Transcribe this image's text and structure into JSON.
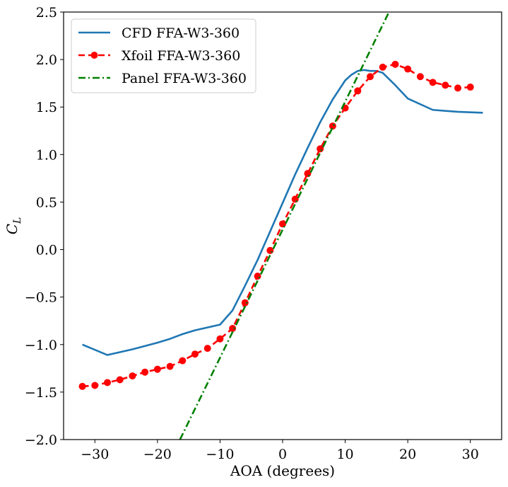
{
  "chart_data": {
    "type": "line",
    "xlabel": "AOA (degrees)",
    "ylabel": "C",
    "ylabel_sub": "L",
    "xlim": [
      -35,
      35
    ],
    "ylim": [
      -2.0,
      2.5
    ],
    "xticks": [
      -30,
      -20,
      -10,
      0,
      10,
      20,
      30
    ],
    "xtick_labels": [
      "−30",
      "−20",
      "−10",
      "0",
      "10",
      "20",
      "30"
    ],
    "yticks": [
      -2.0,
      -1.5,
      -1.0,
      -0.5,
      0.0,
      0.5,
      1.0,
      1.5,
      2.0,
      2.5
    ],
    "ytick_labels": [
      "−2.0",
      "−1.5",
      "−1.0",
      "−0.5",
      "0.0",
      "0.5",
      "1.0",
      "1.5",
      "2.0",
      "2.5"
    ],
    "grid": false,
    "legend_position": "top-left",
    "series": [
      {
        "name": "CFD FFA-W3-360",
        "color": "#1f77b4",
        "style": "solid",
        "marker": "none",
        "x": [
          -32,
          -28,
          -24,
          -20,
          -18,
          -16,
          -14,
          -12,
          -10,
          -8,
          -6,
          -4,
          -2,
          0,
          2,
          4,
          6,
          8,
          10,
          11,
          12,
          13,
          14,
          15,
          16,
          18,
          20,
          24,
          28,
          32
        ],
        "y": [
          -1.0,
          -1.11,
          -1.05,
          -0.98,
          -0.94,
          -0.89,
          -0.85,
          -0.82,
          -0.79,
          -0.64,
          -0.38,
          -0.11,
          0.19,
          0.49,
          0.79,
          1.07,
          1.34,
          1.58,
          1.78,
          1.84,
          1.88,
          1.89,
          1.88,
          1.88,
          1.86,
          1.73,
          1.59,
          1.47,
          1.45,
          1.44
        ]
      },
      {
        "name": "Xfoil FFA-W3-360",
        "color": "#ff0000",
        "style": "dashed",
        "marker": "circle",
        "x": [
          -32,
          -30,
          -28,
          -26,
          -24,
          -22,
          -20,
          -18,
          -16,
          -14,
          -12,
          -10,
          -8,
          -6,
          -4,
          -2,
          0,
          2,
          4,
          6,
          8,
          10,
          12,
          14,
          16,
          18,
          20,
          22,
          24,
          26,
          28,
          30
        ],
        "y": [
          -1.44,
          -1.43,
          -1.4,
          -1.37,
          -1.33,
          -1.29,
          -1.26,
          -1.23,
          -1.17,
          -1.1,
          -1.04,
          -0.94,
          -0.83,
          -0.56,
          -0.28,
          -0.01,
          0.27,
          0.53,
          0.8,
          1.06,
          1.3,
          1.49,
          1.67,
          1.82,
          1.92,
          1.95,
          1.9,
          1.82,
          1.76,
          1.73,
          1.7,
          1.71
        ]
      },
      {
        "name": "Panel FFA-W3-360",
        "color": "#008000",
        "style": "dashdot",
        "marker": "none",
        "x": [
          -16.4,
          17
        ],
        "y": [
          -2.0,
          2.5
        ]
      }
    ]
  }
}
